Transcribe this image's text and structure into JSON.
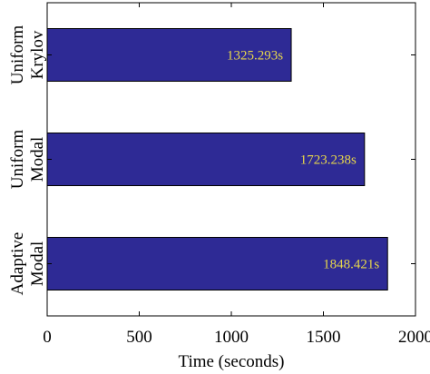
{
  "chart_data": {
    "type": "bar",
    "orientation": "horizontal",
    "categories": [
      [
        "Uniform",
        "Krylov"
      ],
      [
        "Uniform",
        "Modal"
      ],
      [
        "Adaptive",
        "Modal"
      ]
    ],
    "values": [
      1325.293,
      1723.238,
      1848.421
    ],
    "value_labels": [
      "1325.293s",
      "1723.238s",
      "1848.421s"
    ],
    "xlabel": "Time (seconds)",
    "ylabel": "",
    "xlim": [
      0,
      2000
    ],
    "xticks": [
      0,
      500,
      1000,
      1500,
      2000
    ],
    "xtick_labels": [
      "0",
      "500",
      "1000",
      "1500",
      "2000"
    ],
    "grid": false,
    "colors": {
      "bar_fill": "#2e2a95",
      "bar_stroke": "#000000",
      "value_text": "#e8d84a",
      "axis": "#000000"
    }
  }
}
